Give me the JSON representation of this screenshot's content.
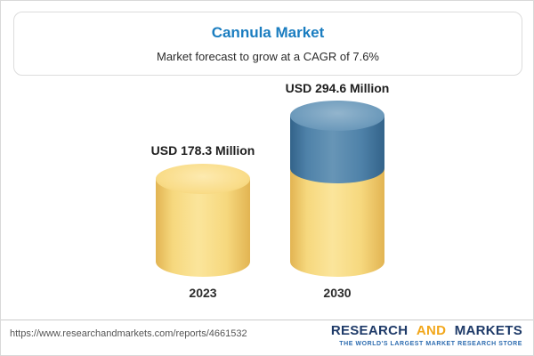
{
  "header": {
    "title": "Cannula Market",
    "subtitle": "Market forecast to grow at a CAGR of 7.6%"
  },
  "chart_data": {
    "type": "bar",
    "title": "Cannula Market",
    "subtitle": "Market forecast to grow at a CAGR of 7.6%",
    "cagr_percent": 7.6,
    "unit": "USD Million",
    "categories": [
      "2023",
      "2030"
    ],
    "values": [
      178.3,
      294.6
    ],
    "value_labels": [
      "USD 178.3 Million",
      "USD 294.6 Million"
    ],
    "orientation": "vertical",
    "legend": "none",
    "bar_styles": [
      "yellow cylinder",
      "yellow cylinder with blue top segment"
    ]
  },
  "footer": {
    "url": "https://www.researchandmarkets.com/reports/4661532",
    "logo": {
      "research": "RESEARCH",
      "and": "AND",
      "markets": "MARKETS"
    },
    "tagline": "THE WORLD'S LARGEST MARKET RESEARCH STORE"
  },
  "colors": {
    "title-blue": "#1a7dc0",
    "bar-yellow": "#f6d87e",
    "bar-blue": "#4f82a9",
    "logo-navy": "#1e3a68",
    "logo-gold": "#f2a71b",
    "logo-blue": "#2d6cb0"
  }
}
